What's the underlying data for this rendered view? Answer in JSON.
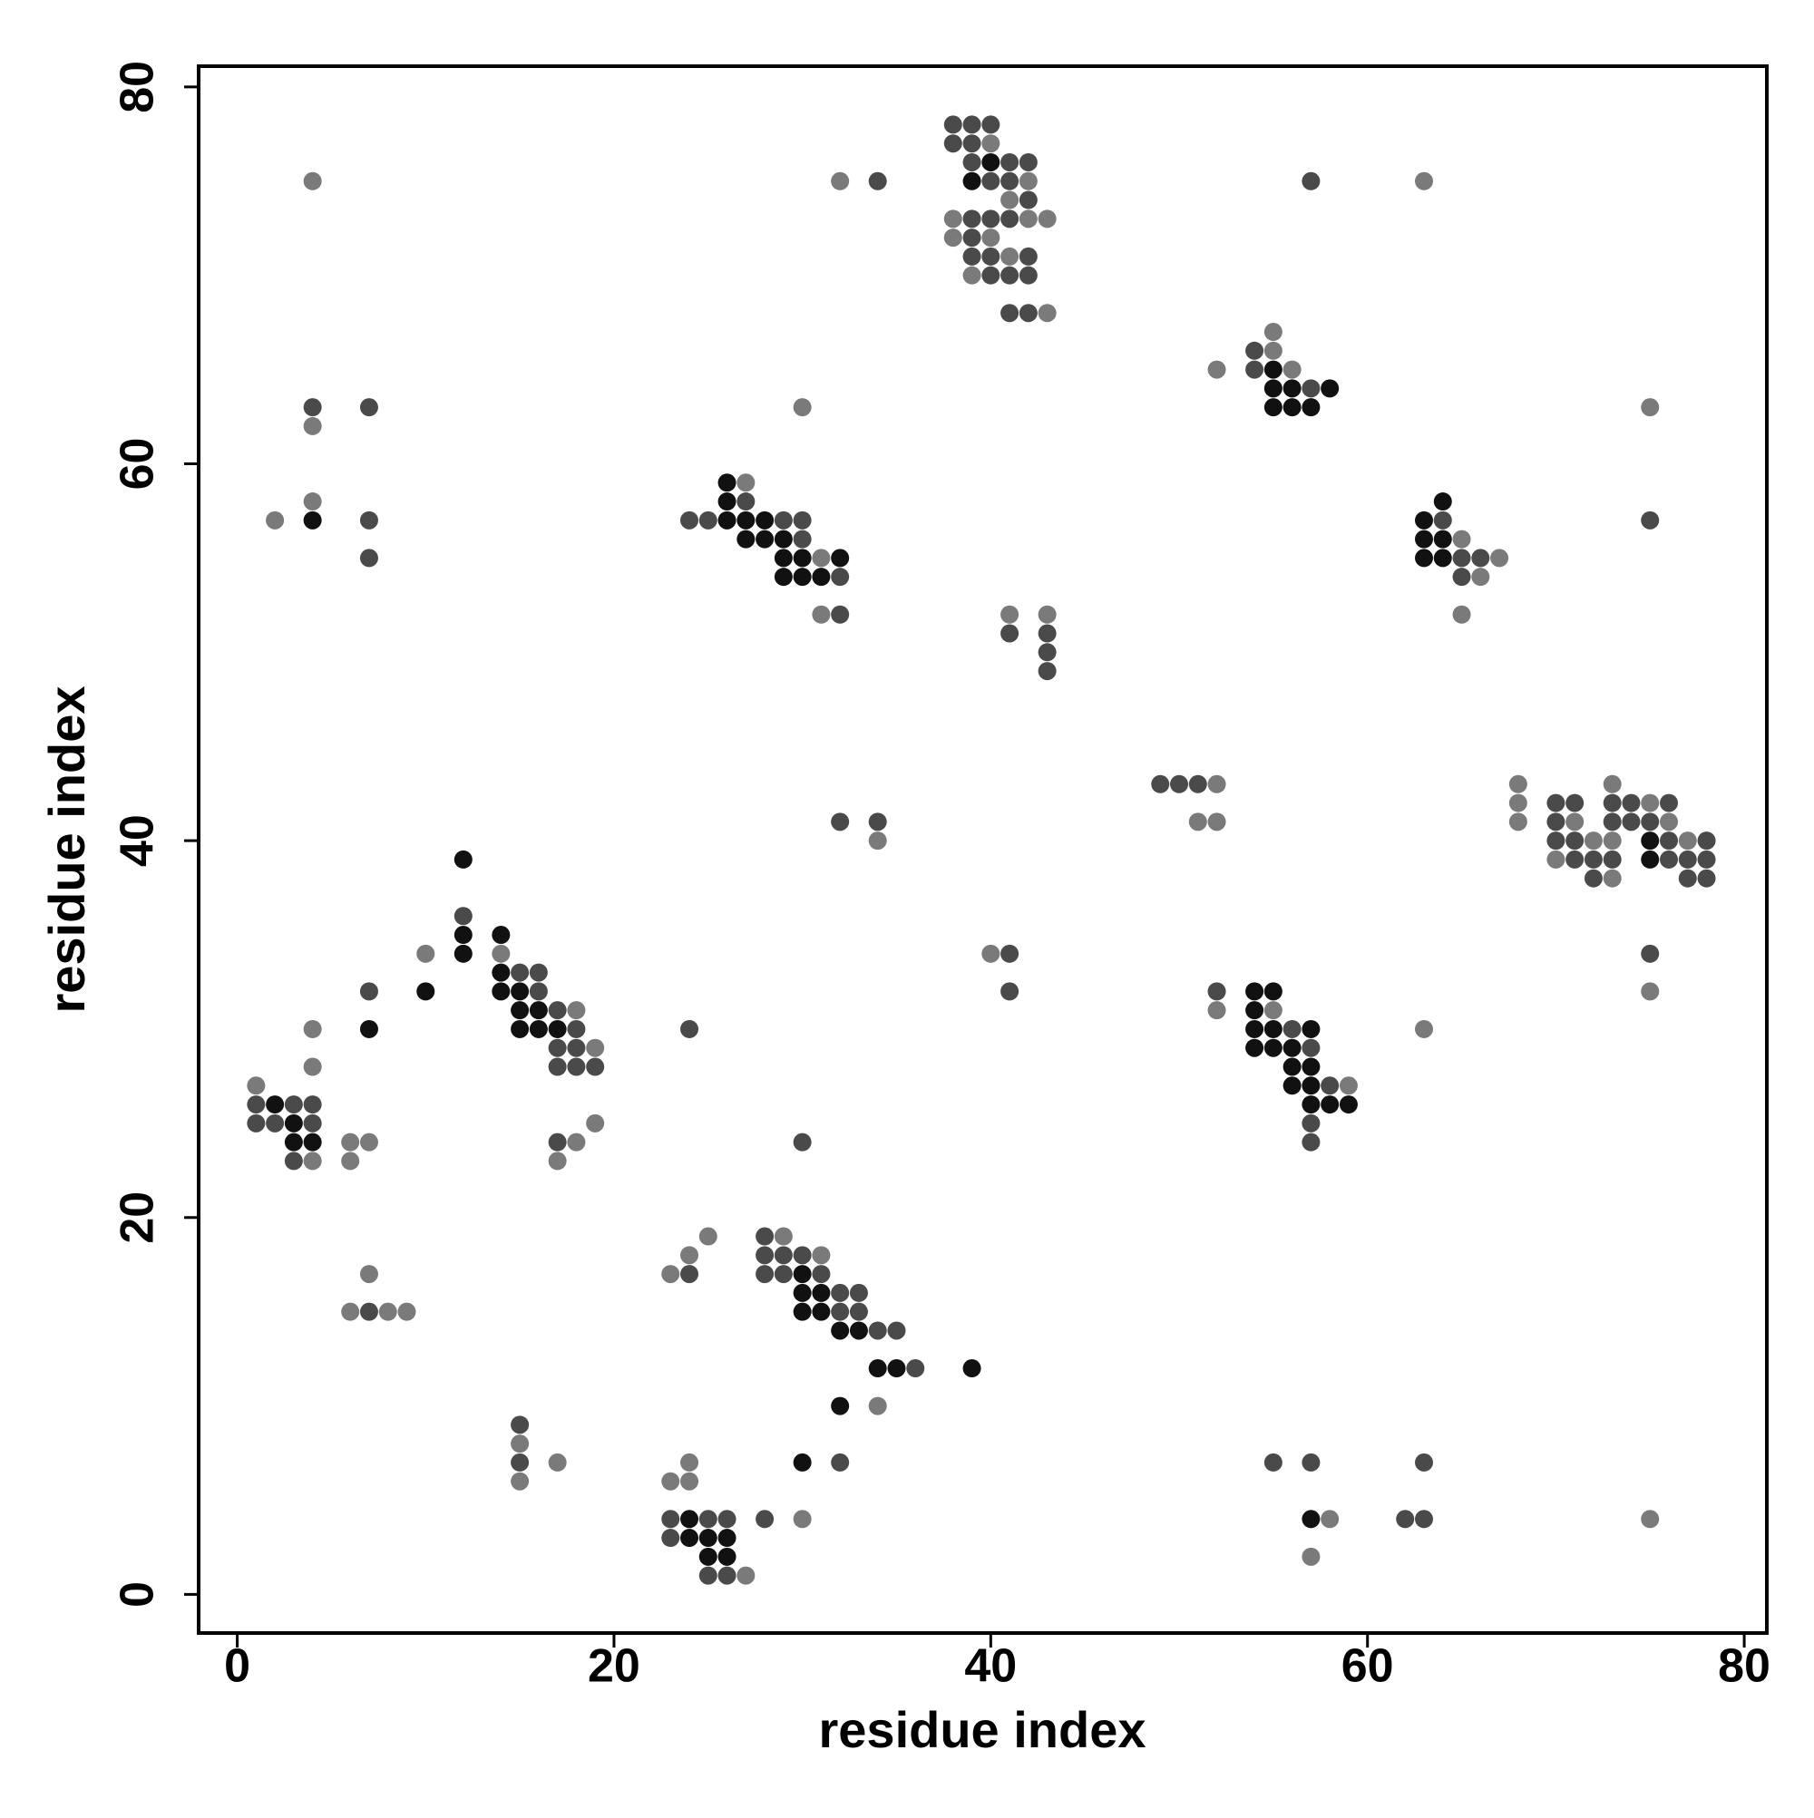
{
  "chart_data": {
    "type": "scatter",
    "x_label": "residue index",
    "y_label": "residue index",
    "xlim": [
      -2.05,
      81.2
    ],
    "ylim": [
      -2.05,
      81.1
    ],
    "xticks": [
      0,
      20,
      40,
      60,
      80
    ],
    "yticks": [
      0,
      20,
      40,
      60,
      80
    ],
    "grid": false,
    "series": [
      {
        "color": "#111111",
        "x": [
          4,
          2,
          3,
          3,
          4,
          7,
          10,
          12,
          12,
          12,
          14,
          14,
          14,
          15,
          15,
          16,
          15,
          16,
          17,
          24,
          24,
          25,
          26,
          25,
          26,
          30,
          30,
          30,
          31,
          30,
          31,
          32,
          33,
          34,
          35,
          39,
          32,
          26,
          26,
          26,
          27,
          28,
          27,
          28,
          29,
          29,
          30,
          32,
          29,
          30,
          31,
          40,
          39,
          54,
          55,
          54,
          54,
          55,
          57,
          54,
          55,
          56,
          56,
          57,
          56,
          57,
          57,
          58,
          59,
          55,
          55,
          56,
          58,
          55,
          56,
          57,
          63,
          64,
          63,
          64,
          63,
          64,
          75,
          75,
          57
        ],
        "values": [
          57,
          26,
          25,
          24,
          24,
          30,
          32,
          34,
          35,
          39,
          35,
          33,
          32,
          32,
          31,
          31,
          30,
          30,
          30,
          4,
          3,
          3,
          3,
          2,
          2,
          7,
          17,
          16,
          16,
          15,
          15,
          14,
          14,
          12,
          12,
          12,
          10,
          59,
          58,
          57,
          57,
          57,
          56,
          56,
          56,
          55,
          55,
          55,
          54,
          54,
          54,
          76,
          75,
          32,
          32,
          31,
          30,
          30,
          30,
          29,
          29,
          29,
          28,
          28,
          27,
          27,
          26,
          26,
          26,
          65,
          64,
          64,
          64,
          63,
          63,
          63,
          57,
          58,
          56,
          56,
          55,
          55,
          40,
          39,
          4
        ]
      },
      {
        "color": "#4a4a4a",
        "x": [
          4,
          7,
          7,
          7,
          1,
          3,
          4,
          1,
          2,
          4,
          3,
          7,
          12,
          15,
          16,
          16,
          17,
          18,
          17,
          18,
          17,
          18,
          19,
          17,
          7,
          15,
          15,
          23,
          25,
          26,
          23,
          25,
          26,
          28,
          32,
          24,
          24,
          28,
          28,
          29,
          30,
          28,
          29,
          31,
          32,
          33,
          32,
          33,
          34,
          35,
          36,
          30,
          24,
          25,
          27,
          29,
          30,
          30,
          32,
          32,
          34,
          32,
          34,
          41,
          41,
          41,
          43,
          43,
          43,
          38,
          39,
          40,
          38,
          39,
          39,
          41,
          42,
          40,
          41,
          42,
          39,
          40,
          41,
          39,
          39,
          40,
          42,
          40,
          41,
          42,
          41,
          42,
          49,
          50,
          51,
          52,
          56,
          57,
          58,
          57,
          57,
          54,
          54,
          57,
          57,
          64,
          65,
          65,
          66,
          75,
          70,
          71,
          70,
          70,
          71,
          71,
          72,
          72,
          73,
          74,
          76,
          73,
          74,
          75,
          76,
          78,
          73,
          76,
          77,
          78,
          77,
          78,
          75,
          55,
          57,
          63,
          62,
          63
        ],
        "values": [
          63,
          63,
          57,
          55,
          26,
          26,
          26,
          25,
          25,
          25,
          23,
          32,
          36,
          33,
          33,
          32,
          31,
          30,
          29,
          29,
          28,
          28,
          28,
          24,
          15,
          9,
          7,
          4,
          4,
          4,
          3,
          1,
          1,
          4,
          7,
          17,
          30,
          19,
          18,
          18,
          18,
          17,
          17,
          17,
          16,
          16,
          15,
          15,
          14,
          14,
          12,
          24,
          57,
          57,
          58,
          57,
          57,
          56,
          54,
          52,
          75,
          41,
          41,
          34,
          32,
          51,
          51,
          50,
          49,
          78,
          78,
          78,
          77,
          77,
          76,
          76,
          76,
          75,
          75,
          74,
          73,
          73,
          73,
          72,
          71,
          71,
          71,
          70,
          70,
          70,
          68,
          68,
          43,
          43,
          43,
          32,
          30,
          29,
          27,
          25,
          24,
          66,
          65,
          64,
          75,
          57,
          55,
          54,
          55,
          57,
          42,
          42,
          41,
          40,
          40,
          39,
          39,
          38,
          42,
          42,
          42,
          41,
          41,
          41,
          40,
          40,
          39,
          39,
          39,
          39,
          38,
          38,
          34,
          7,
          7,
          7,
          4,
          4
        ]
      },
      {
        "color": "#7a7a7a",
        "x": [
          2,
          4,
          4,
          4,
          1,
          4,
          4,
          4,
          6,
          7,
          6,
          10,
          14,
          18,
          19,
          19,
          18,
          17,
          6,
          8,
          9,
          7,
          15,
          15,
          17,
          23,
          24,
          24,
          27,
          30,
          23,
          24,
          25,
          29,
          31,
          34,
          27,
          31,
          31,
          30,
          32,
          34,
          40,
          41,
          43,
          40,
          42,
          41,
          38,
          42,
          43,
          38,
          40,
          41,
          39,
          43,
          52,
          51,
          52,
          52,
          55,
          59,
          52,
          55,
          55,
          56,
          63,
          65,
          66,
          67,
          65,
          63,
          75,
          68,
          68,
          68,
          71,
          72,
          70,
          73,
          75,
          76,
          73,
          77,
          73,
          75,
          58,
          57,
          75
        ],
        "values": [
          57,
          58,
          62,
          75,
          27,
          23,
          28,
          30,
          24,
          24,
          23,
          34,
          34,
          31,
          29,
          25,
          24,
          23,
          15,
          15,
          15,
          17,
          8,
          6,
          7,
          6,
          6,
          7,
          1,
          4,
          17,
          18,
          19,
          19,
          18,
          10,
          59,
          55,
          52,
          63,
          75,
          40,
          34,
          52,
          52,
          77,
          75,
          74,
          73,
          73,
          73,
          72,
          72,
          71,
          70,
          68,
          43,
          41,
          41,
          31,
          31,
          27,
          65,
          66,
          67,
          65,
          75,
          56,
          54,
          55,
          52,
          30,
          63,
          43,
          42,
          41,
          41,
          40,
          39,
          43,
          42,
          41,
          40,
          40,
          38,
          32,
          4,
          2,
          4
        ]
      }
    ]
  }
}
